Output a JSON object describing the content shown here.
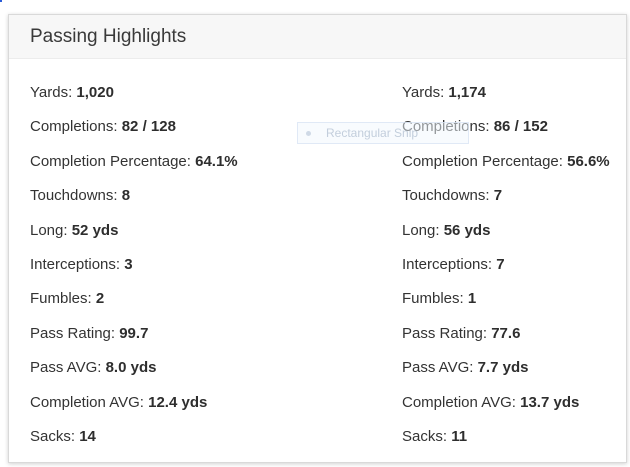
{
  "panel": {
    "title": "Passing Highlights"
  },
  "tooltip": {
    "label": "Rectangular Snip"
  },
  "left_stats": [
    {
      "label": "Yards:",
      "value": "1,020"
    },
    {
      "label": "Completions:",
      "value": "82 / 128"
    },
    {
      "label": "Completion Percentage:",
      "value": "64.1%"
    },
    {
      "label": "Touchdowns:",
      "value": "8"
    },
    {
      "label": "Long:",
      "value": "52 yds"
    },
    {
      "label": "Interceptions:",
      "value": "3"
    },
    {
      "label": "Fumbles:",
      "value": "2"
    },
    {
      "label": "Pass Rating:",
      "value": "99.7"
    },
    {
      "label": "Pass AVG:",
      "value": "8.0 yds"
    },
    {
      "label": "Completion AVG:",
      "value": "12.4 yds"
    },
    {
      "label": "Sacks:",
      "value": "14"
    }
  ],
  "right_stats": [
    {
      "label": "Yards:",
      "value": "1,174"
    },
    {
      "label": "Completions:",
      "value": "86 / 152"
    },
    {
      "label": "Completion Percentage:",
      "value": "56.6%"
    },
    {
      "label": "Touchdowns:",
      "value": "7"
    },
    {
      "label": "Long:",
      "value": "56 yds"
    },
    {
      "label": "Interceptions:",
      "value": "7"
    },
    {
      "label": "Fumbles:",
      "value": "1"
    },
    {
      "label": "Pass Rating:",
      "value": "77.6"
    },
    {
      "label": "Pass AVG:",
      "value": "7.7 yds"
    },
    {
      "label": "Completion AVG:",
      "value": "13.7 yds"
    },
    {
      "label": "Sacks:",
      "value": "11"
    }
  ]
}
